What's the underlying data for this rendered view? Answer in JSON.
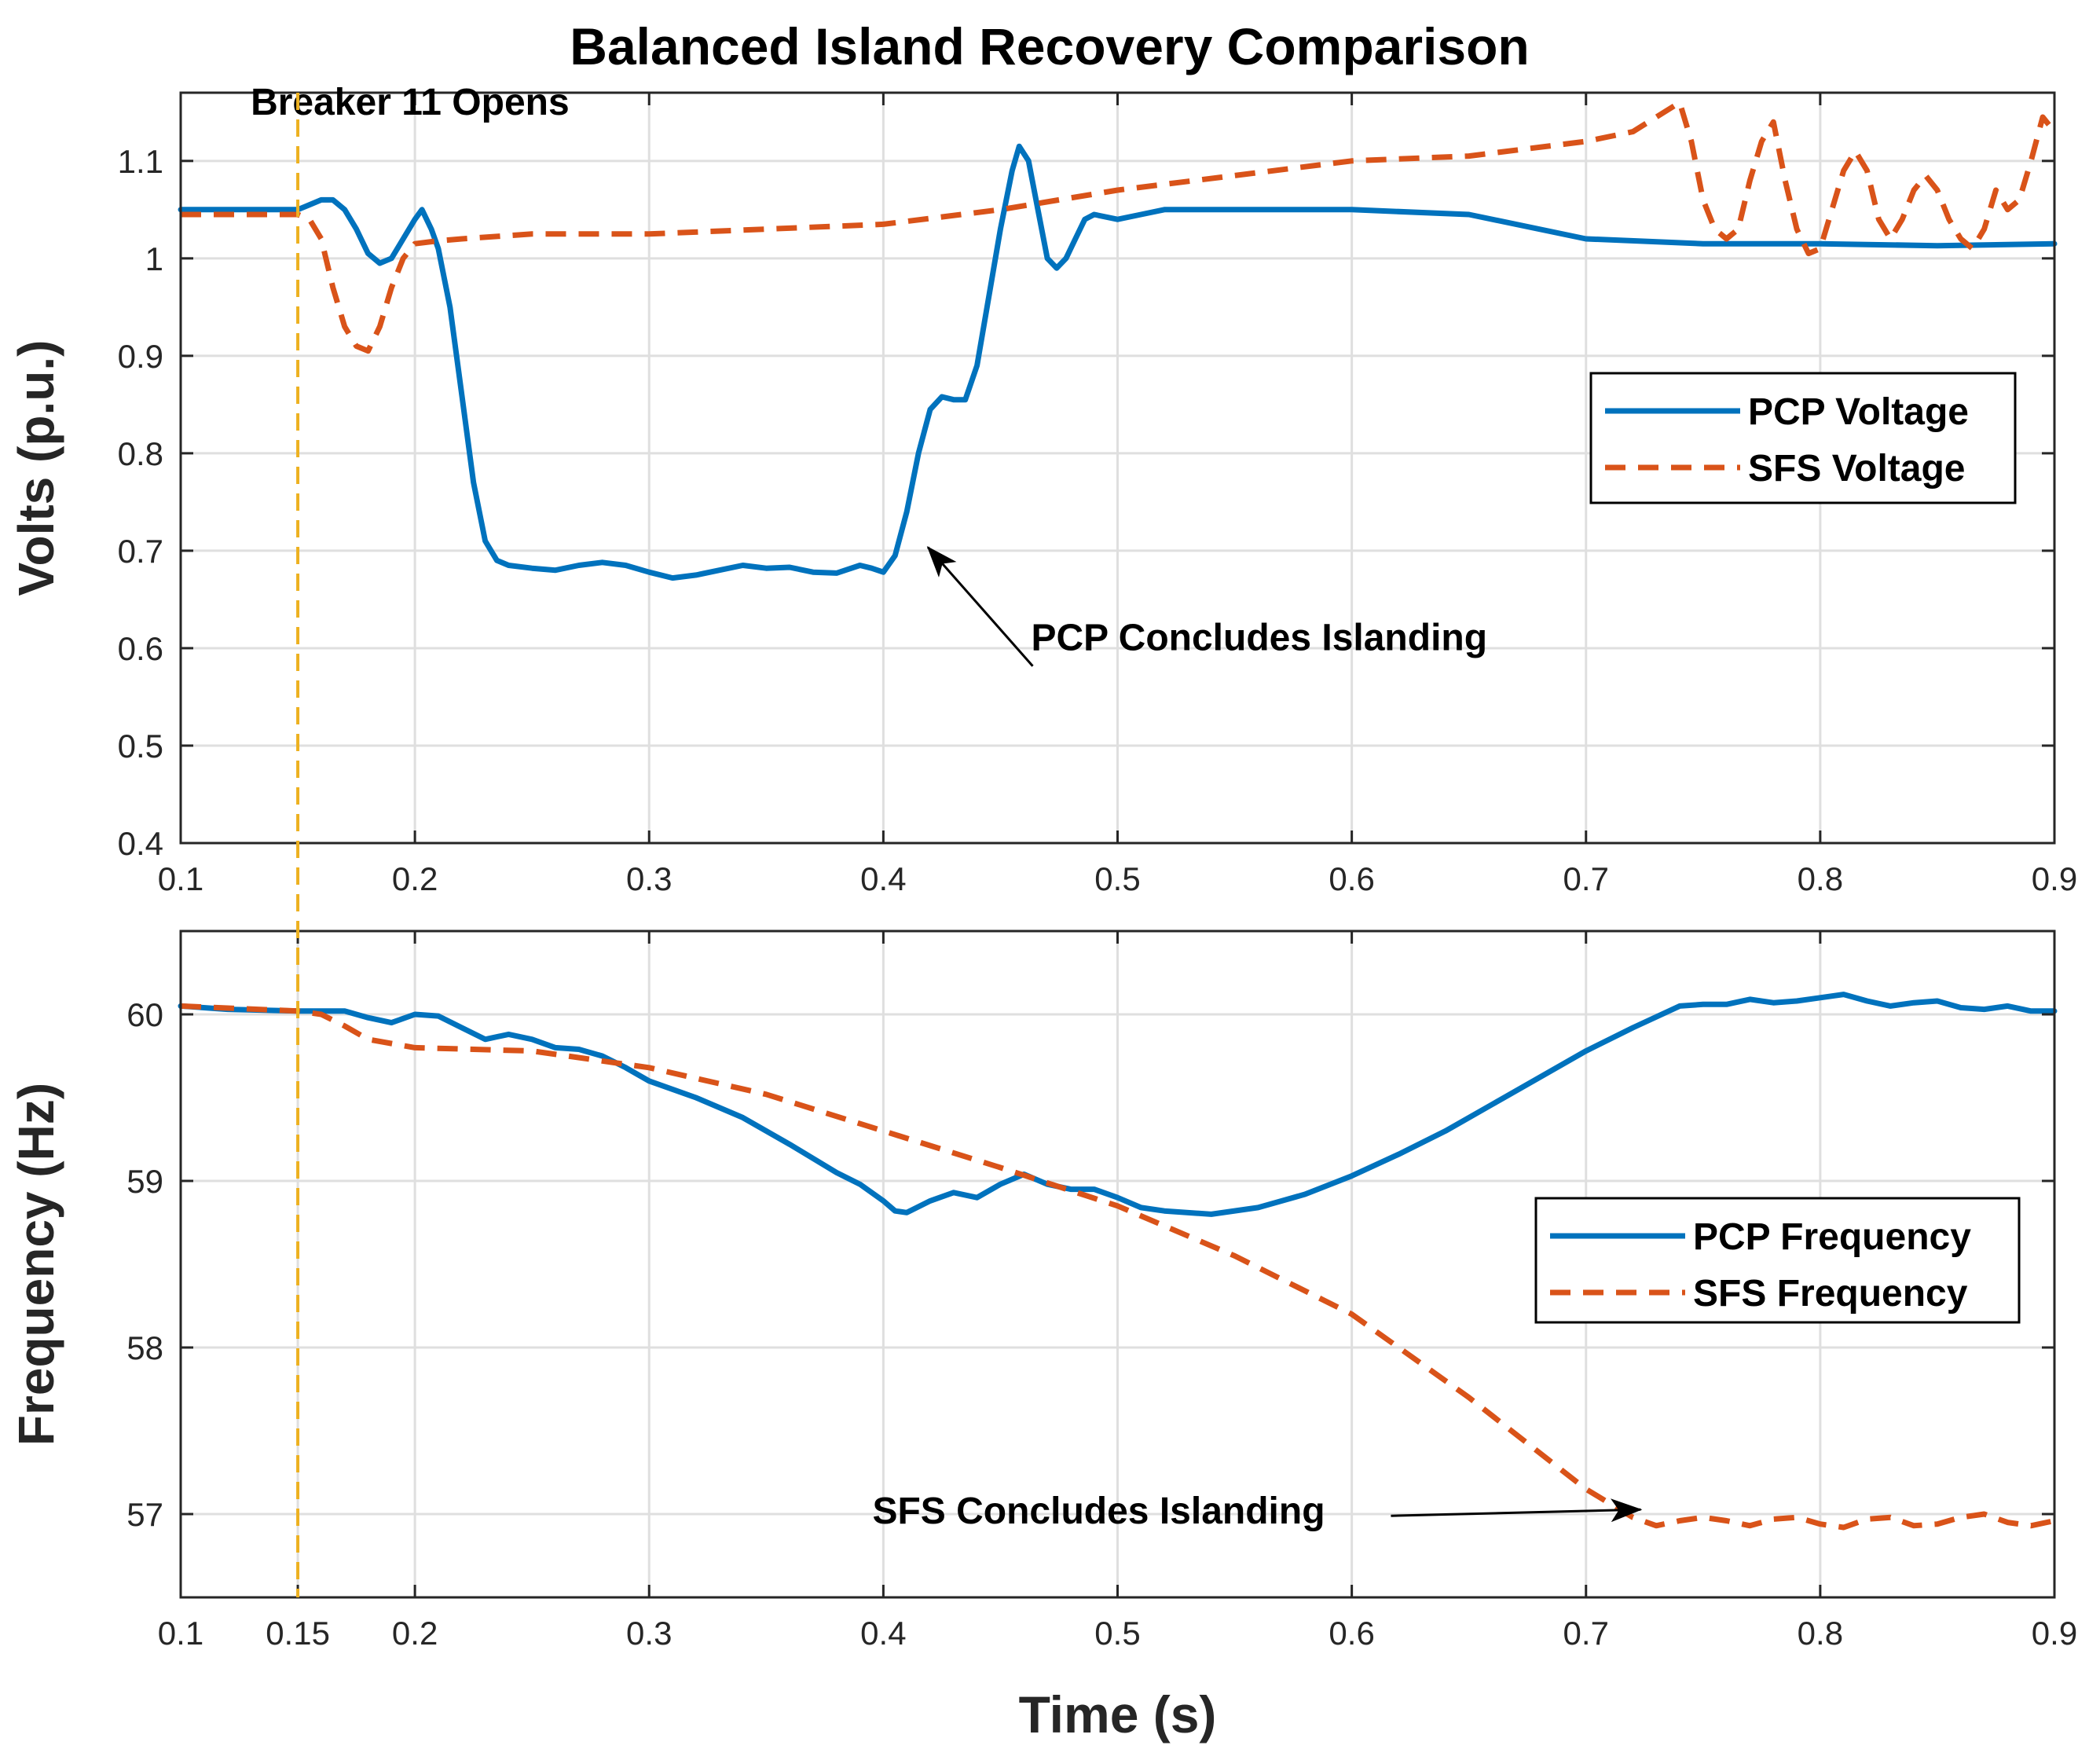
{
  "title": "Balanced Island Recovery Comparison",
  "colors": {
    "pcp": "#0072BD",
    "sfs": "#D95319",
    "event": "#EDB120",
    "axis": "#262626",
    "grid": "#dfdfdf"
  },
  "chart_data": [
    {
      "type": "line",
      "ylabel": "Volts (p.u.)",
      "xlabel": "",
      "xlim": [
        0.1,
        0.9
      ],
      "ylim": [
        0.4,
        1.17
      ],
      "xticks": [
        0.1,
        0.2,
        0.3,
        0.4,
        0.5,
        0.6,
        0.7,
        0.8,
        0.9
      ],
      "xtick_labels": [
        "0.1",
        "0.2",
        "0.3",
        "0.4",
        "0.5",
        "0.6",
        "0.7",
        "0.8",
        "0.9"
      ],
      "yticks": [
        0.4,
        0.5,
        0.6,
        0.7,
        0.8,
        0.9,
        1.0,
        1.1
      ],
      "ytick_labels": [
        "0.4",
        "0.5",
        "0.6",
        "0.7",
        "0.8",
        "0.9",
        "1",
        "1.1"
      ],
      "grid": true,
      "legend_position": "right",
      "series": [
        {
          "name": "PCP Voltage",
          "style": "solid",
          "x": [
            0.1,
            0.15,
            0.155,
            0.16,
            0.165,
            0.17,
            0.175,
            0.18,
            0.185,
            0.19,
            0.195,
            0.2,
            0.203,
            0.207,
            0.21,
            0.215,
            0.22,
            0.225,
            0.23,
            0.235,
            0.24,
            0.25,
            0.26,
            0.27,
            0.28,
            0.29,
            0.3,
            0.31,
            0.32,
            0.33,
            0.34,
            0.35,
            0.36,
            0.37,
            0.38,
            0.39,
            0.395,
            0.4,
            0.405,
            0.41,
            0.415,
            0.42,
            0.425,
            0.43,
            0.435,
            0.44,
            0.445,
            0.45,
            0.455,
            0.458,
            0.462,
            0.466,
            0.47,
            0.474,
            0.478,
            0.482,
            0.486,
            0.49,
            0.5,
            0.51,
            0.52,
            0.53,
            0.55,
            0.6,
            0.65,
            0.7,
            0.75,
            0.8,
            0.85,
            0.9
          ],
          "y": [
            1.05,
            1.05,
            1.055,
            1.06,
            1.06,
            1.05,
            1.03,
            1.005,
            0.995,
            1.0,
            1.02,
            1.04,
            1.05,
            1.03,
            1.01,
            0.95,
            0.86,
            0.77,
            0.71,
            0.69,
            0.685,
            0.682,
            0.68,
            0.685,
            0.688,
            0.685,
            0.678,
            0.672,
            0.675,
            0.68,
            0.685,
            0.682,
            0.683,
            0.678,
            0.677,
            0.685,
            0.682,
            0.678,
            0.695,
            0.74,
            0.8,
            0.845,
            0.858,
            0.855,
            0.855,
            0.89,
            0.96,
            1.03,
            1.09,
            1.115,
            1.1,
            1.05,
            1.0,
            0.99,
            1.0,
            1.02,
            1.04,
            1.045,
            1.04,
            1.045,
            1.05,
            1.05,
            1.05,
            1.05,
            1.045,
            1.02,
            1.015,
            1.015,
            1.013,
            1.015
          ]
        },
        {
          "name": "SFS Voltage",
          "style": "dashed",
          "x": [
            0.1,
            0.15,
            0.155,
            0.16,
            0.165,
            0.17,
            0.175,
            0.18,
            0.185,
            0.19,
            0.195,
            0.2,
            0.21,
            0.22,
            0.25,
            0.3,
            0.35,
            0.4,
            0.45,
            0.5,
            0.55,
            0.6,
            0.65,
            0.7,
            0.72,
            0.73,
            0.74,
            0.745,
            0.75,
            0.755,
            0.76,
            0.765,
            0.77,
            0.775,
            0.78,
            0.785,
            0.79,
            0.795,
            0.8,
            0.805,
            0.81,
            0.815,
            0.82,
            0.825,
            0.83,
            0.835,
            0.84,
            0.845,
            0.85,
            0.855,
            0.86,
            0.865,
            0.87,
            0.875,
            0.88,
            0.885,
            0.89,
            0.895,
            0.9
          ],
          "y": [
            1.045,
            1.045,
            1.04,
            1.02,
            0.97,
            0.93,
            0.91,
            0.905,
            0.93,
            0.97,
            1.0,
            1.015,
            1.018,
            1.02,
            1.025,
            1.025,
            1.03,
            1.035,
            1.05,
            1.07,
            1.085,
            1.1,
            1.105,
            1.12,
            1.13,
            1.145,
            1.16,
            1.12,
            1.06,
            1.03,
            1.02,
            1.03,
            1.08,
            1.12,
            1.14,
            1.08,
            1.03,
            1.005,
            1.01,
            1.05,
            1.09,
            1.11,
            1.09,
            1.04,
            1.02,
            1.04,
            1.07,
            1.085,
            1.07,
            1.04,
            1.02,
            1.01,
            1.03,
            1.07,
            1.05,
            1.06,
            1.1,
            1.145,
            1.13
          ]
        }
      ],
      "annotations": [
        {
          "text": "Breaker 11 Opens",
          "x": 0.15
        },
        {
          "text": "PCP Concludes Islanding",
          "x": 0.415,
          "y": 0.71,
          "text_x": 0.5,
          "text_y": 0.63
        }
      ],
      "event_line_x": 0.15
    },
    {
      "type": "line",
      "ylabel": "Frequency (Hz)",
      "xlabel": "Time (s)",
      "xlim": [
        0.1,
        0.9
      ],
      "ylim": [
        56.5,
        60.5
      ],
      "xticks": [
        0.1,
        0.15,
        0.2,
        0.3,
        0.4,
        0.5,
        0.6,
        0.7,
        0.8,
        0.9
      ],
      "xtick_labels": [
        "0.1",
        "0.15",
        "0.2",
        "0.3",
        "0.4",
        "0.5",
        "0.6",
        "0.7",
        "0.8",
        "0.9"
      ],
      "yticks": [
        57,
        58,
        59,
        60
      ],
      "ytick_labels": [
        "57",
        "58",
        "59",
        "60"
      ],
      "grid": true,
      "legend_position": "right",
      "series": [
        {
          "name": "PCP Frequency",
          "style": "solid",
          "x": [
            0.1,
            0.12,
            0.15,
            0.16,
            0.17,
            0.18,
            0.19,
            0.2,
            0.21,
            0.22,
            0.23,
            0.24,
            0.25,
            0.26,
            0.27,
            0.28,
            0.29,
            0.3,
            0.32,
            0.34,
            0.36,
            0.38,
            0.39,
            0.4,
            0.405,
            0.41,
            0.42,
            0.43,
            0.44,
            0.45,
            0.46,
            0.47,
            0.48,
            0.49,
            0.5,
            0.51,
            0.52,
            0.54,
            0.56,
            0.58,
            0.6,
            0.62,
            0.64,
            0.66,
            0.68,
            0.7,
            0.72,
            0.74,
            0.75,
            0.76,
            0.77,
            0.78,
            0.79,
            0.8,
            0.81,
            0.82,
            0.83,
            0.84,
            0.85,
            0.86,
            0.87,
            0.88,
            0.89,
            0.9
          ],
          "y": [
            60.05,
            60.03,
            60.02,
            60.02,
            60.02,
            59.98,
            59.95,
            60.0,
            59.99,
            59.92,
            59.85,
            59.88,
            59.85,
            59.8,
            59.79,
            59.75,
            59.68,
            59.6,
            59.5,
            59.38,
            59.22,
            59.05,
            58.98,
            58.88,
            58.82,
            58.81,
            58.88,
            58.93,
            58.9,
            58.98,
            59.04,
            58.98,
            58.95,
            58.95,
            58.9,
            58.84,
            58.82,
            58.8,
            58.84,
            58.92,
            59.03,
            59.16,
            59.3,
            59.46,
            59.62,
            59.78,
            59.92,
            60.05,
            60.06,
            60.06,
            60.09,
            60.07,
            60.08,
            60.1,
            60.12,
            60.08,
            60.05,
            60.07,
            60.08,
            60.04,
            60.03,
            60.05,
            60.02,
            60.02
          ]
        },
        {
          "name": "SFS Frequency",
          "style": "dashed",
          "x": [
            0.1,
            0.15,
            0.16,
            0.17,
            0.18,
            0.2,
            0.25,
            0.3,
            0.35,
            0.4,
            0.45,
            0.5,
            0.55,
            0.6,
            0.65,
            0.7,
            0.72,
            0.73,
            0.74,
            0.75,
            0.76,
            0.77,
            0.78,
            0.79,
            0.8,
            0.81,
            0.82,
            0.83,
            0.84,
            0.85,
            0.86,
            0.87,
            0.88,
            0.89,
            0.9
          ],
          "y": [
            60.05,
            60.02,
            60.0,
            59.93,
            59.85,
            59.8,
            59.78,
            59.68,
            59.52,
            59.3,
            59.08,
            58.85,
            58.55,
            58.2,
            57.7,
            57.15,
            56.98,
            56.93,
            56.96,
            56.98,
            56.96,
            56.93,
            56.97,
            56.98,
            56.94,
            56.92,
            56.97,
            56.98,
            56.93,
            56.94,
            56.98,
            57.0,
            56.95,
            56.93,
            56.96
          ]
        }
      ],
      "annotations": [
        {
          "text": "SFS Concludes Islanding",
          "x": 0.72,
          "y": 56.98,
          "text_x": 0.61,
          "text_y": 56.98
        }
      ],
      "event_line_x": 0.15
    }
  ]
}
